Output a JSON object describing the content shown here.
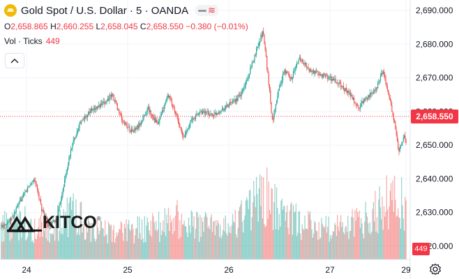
{
  "header": {
    "title": "Gold Spot / U.S. Dollar · 5 · OANDA",
    "symbol_icon": "gold-bars-icon"
  },
  "ohlc": {
    "open_label": "O",
    "open": "2,658.865",
    "high_label": "H",
    "high": "2,660.255",
    "low_label": "L",
    "low": "2,658.045",
    "close_label": "C",
    "close": "2,658.550",
    "change": "−0.380 (−0.01%)"
  },
  "volume_legend": {
    "label": "Vol · Ticks",
    "value": "449"
  },
  "price_tag": "2,658.550",
  "volume_tag": "449",
  "colors": {
    "up": "#26a69a",
    "down": "#ef5350",
    "last_price_line": "#f23645",
    "grid": "#f0f3fa",
    "axis_text": "#131722"
  },
  "logo": {
    "text": "KITCO",
    "reg": "®"
  },
  "chart_data": {
    "type": "candlestick",
    "title": "Gold Spot / U.S. Dollar · 5 · OANDA",
    "y_ticks": [
      "2,690.000",
      "2,680.000",
      "2,670.000",
      "2,660.000",
      "2,650.000",
      "2,640.000",
      "2,630.000",
      "2,620.000"
    ],
    "y_values": [
      2690,
      2680,
      2670,
      2660,
      2650,
      2640,
      2630,
      2620
    ],
    "ylim": [
      2618.5,
      2693.5
    ],
    "x_ticks": [
      "24",
      "25",
      "26",
      "27",
      "29"
    ],
    "xlim_days": [
      23.75,
      28.8
    ],
    "last_price": 2658.55,
    "price_path": [
      [
        23.75,
        2626
      ],
      [
        23.85,
        2628
      ],
      [
        23.95,
        2634
      ],
      [
        24.03,
        2638
      ],
      [
        24.08,
        2640
      ],
      [
        24.15,
        2631
      ],
      [
        24.22,
        2626
      ],
      [
        24.3,
        2628
      ],
      [
        24.38,
        2640
      ],
      [
        24.45,
        2650
      ],
      [
        24.52,
        2656
      ],
      [
        24.62,
        2660
      ],
      [
        24.75,
        2662
      ],
      [
        24.85,
        2665
      ],
      [
        24.95,
        2657
      ],
      [
        25.05,
        2654
      ],
      [
        25.12,
        2656
      ],
      [
        25.2,
        2661
      ],
      [
        25.3,
        2656
      ],
      [
        25.4,
        2665
      ],
      [
        25.48,
        2659
      ],
      [
        25.55,
        2652
      ],
      [
        25.62,
        2657
      ],
      [
        25.72,
        2660
      ],
      [
        25.85,
        2659
      ],
      [
        25.95,
        2661
      ],
      [
        26.05,
        2663
      ],
      [
        26.12,
        2665
      ],
      [
        26.2,
        2671
      ],
      [
        26.28,
        2679
      ],
      [
        26.34,
        2684
      ],
      [
        26.4,
        2667
      ],
      [
        26.43,
        2657
      ],
      [
        26.48,
        2665
      ],
      [
        26.55,
        2672
      ],
      [
        26.62,
        2670
      ],
      [
        26.7,
        2676
      ],
      [
        26.8,
        2672
      ],
      [
        26.9,
        2671
      ],
      [
        27.0,
        2670
      ],
      [
        27.1,
        2668
      ],
      [
        27.2,
        2665
      ],
      [
        27.28,
        2661
      ],
      [
        27.35,
        2664
      ],
      [
        27.45,
        2666
      ],
      [
        27.52,
        2672
      ],
      [
        27.58,
        2665
      ],
      [
        27.64,
        2656
      ],
      [
        27.68,
        2648
      ],
      [
        27.73,
        2653
      ],
      [
        27.8,
        2645
      ],
      [
        27.86,
        2647
      ],
      [
        27.92,
        2652
      ],
      [
        27.97,
        2658.55
      ]
    ],
    "volume_ticks_range": [
      0,
      800
    ],
    "volume_profile": [
      [
        23.75,
        230
      ],
      [
        23.95,
        280
      ],
      [
        24.1,
        220
      ],
      [
        24.3,
        260
      ],
      [
        24.45,
        330
      ],
      [
        24.55,
        280
      ],
      [
        24.7,
        200
      ],
      [
        24.9,
        190
      ],
      [
        25.1,
        210
      ],
      [
        25.35,
        260
      ],
      [
        25.5,
        290
      ],
      [
        25.65,
        250
      ],
      [
        25.9,
        210
      ],
      [
        26.05,
        260
      ],
      [
        26.2,
        340
      ],
      [
        26.35,
        470
      ],
      [
        26.45,
        380
      ],
      [
        26.6,
        300
      ],
      [
        26.75,
        240
      ],
      [
        26.9,
        220
      ],
      [
        27.1,
        220
      ],
      [
        27.25,
        250
      ],
      [
        27.4,
        300
      ],
      [
        27.55,
        420
      ],
      [
        27.68,
        460
      ],
      [
        27.8,
        320
      ],
      [
        27.95,
        260
      ]
    ],
    "last_volume": 449
  }
}
